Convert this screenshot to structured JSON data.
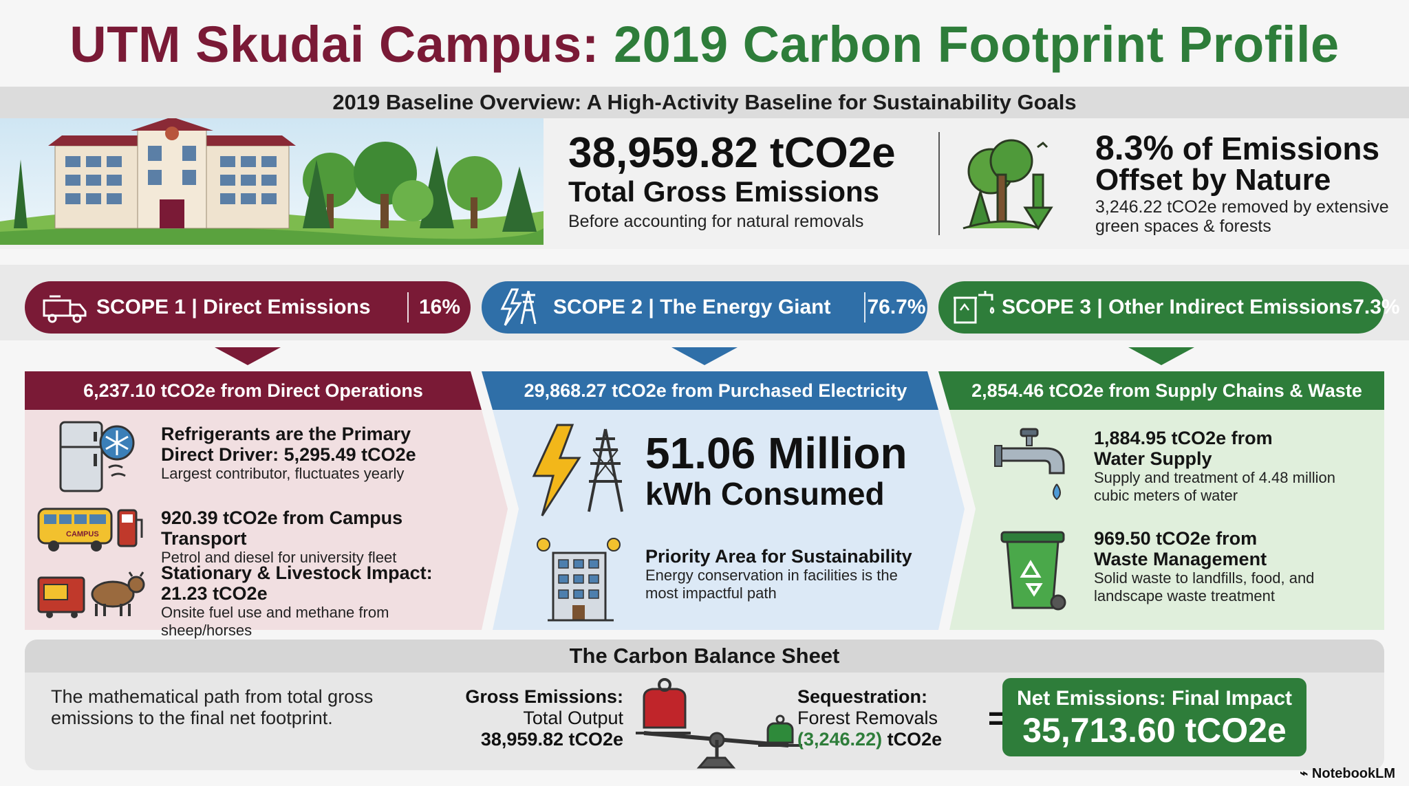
{
  "title": {
    "part1": "UTM Skudai Campus:",
    "part2": "2019 Carbon Footprint Profile"
  },
  "subtitle": "2019 Baseline Overview: A High-Activity Baseline for Sustainability Goals",
  "gross": {
    "value": "38,959.82 tCO2e",
    "label": "Total Gross Emissions",
    "note": "Before accounting for natural removals"
  },
  "offset": {
    "pct": "8.3%",
    "pct_suffix": "of Emissions",
    "label": "Offset by Nature",
    "note_line1": "3,246.22 tCO2e removed by extensive",
    "note_line2": "green spaces & forests"
  },
  "scopes": [
    {
      "pill_label": "SCOPE 1 | Direct Emissions",
      "pct": "16%",
      "color": "#7a1a36",
      "header": "6,237.10 tCO2e from Direct Operations",
      "items": [
        {
          "title_line1": "Refrigerants are the Primary",
          "title_line2": "Direct Driver: 5,295.49 tCO2e",
          "desc": "Largest contributor, fluctuates yearly",
          "icon": "refrigerator-snowflake-icon"
        },
        {
          "title_line1": "920.39 tCO2e from Campus Transport",
          "desc": "Petrol and diesel for university fleet",
          "icon": "bus-fuel-pump-icon",
          "icon_label": "CAMPUS"
        },
        {
          "title_line1": "Stationary & Livestock Impact:",
          "title_line2": "21.23 tCO2e",
          "desc": "Onsite fuel use and methane from sheep/horses",
          "icon": "generator-cow-icon"
        }
      ]
    },
    {
      "pill_label": "SCOPE 2 | The Energy Giant",
      "pct": "76.7%",
      "color": "#2f6fa8",
      "header": "29,868.27 tCO2e from Purchased Electricity",
      "big_line1": "51.06 Million",
      "big_line2": "kWh Consumed",
      "priority_title": "Priority Area for Sustainability",
      "priority_desc_line1": "Energy conservation in facilities is the",
      "priority_desc_line2": "most impactful path"
    },
    {
      "pill_label": "SCOPE 3 | Other Indirect Emissions",
      "pct": "7.3%",
      "color": "#2e7d3a",
      "header": "2,854.46 tCO2e from Supply Chains & Waste",
      "items": [
        {
          "title_line1": "1,884.95 tCO2e from",
          "title_line2": "Water Supply",
          "desc_line1": "Supply and treatment of 4.48 million",
          "desc_line2": "cubic meters of water",
          "icon": "faucet-icon"
        },
        {
          "title_line1": "969.50 tCO2e from",
          "title_line2": "Waste Management",
          "desc_line1": "Solid waste to landfills, food, and",
          "desc_line2": "landscape waste treatment",
          "icon": "recycle-bin-icon"
        }
      ]
    }
  ],
  "balance": {
    "heading": "The Carbon Balance Sheet",
    "desc_line1": "The mathematical path from total gross",
    "desc_line2": "emissions to the final net footprint.",
    "gross_head": "Gross Emissions:",
    "gross_sub": "Total Output",
    "gross_value": "38,959.82 tCO2e",
    "seq_head": "Sequestration:",
    "seq_sub": "Forest Removals",
    "seq_value_num": "(3,246.22)",
    "seq_value_unit": "tCO2e",
    "equals": "=",
    "net_label": "Net Emissions: Final Impact",
    "net_value": "35,713.60 tCO2e"
  },
  "brand": "NotebookLM"
}
